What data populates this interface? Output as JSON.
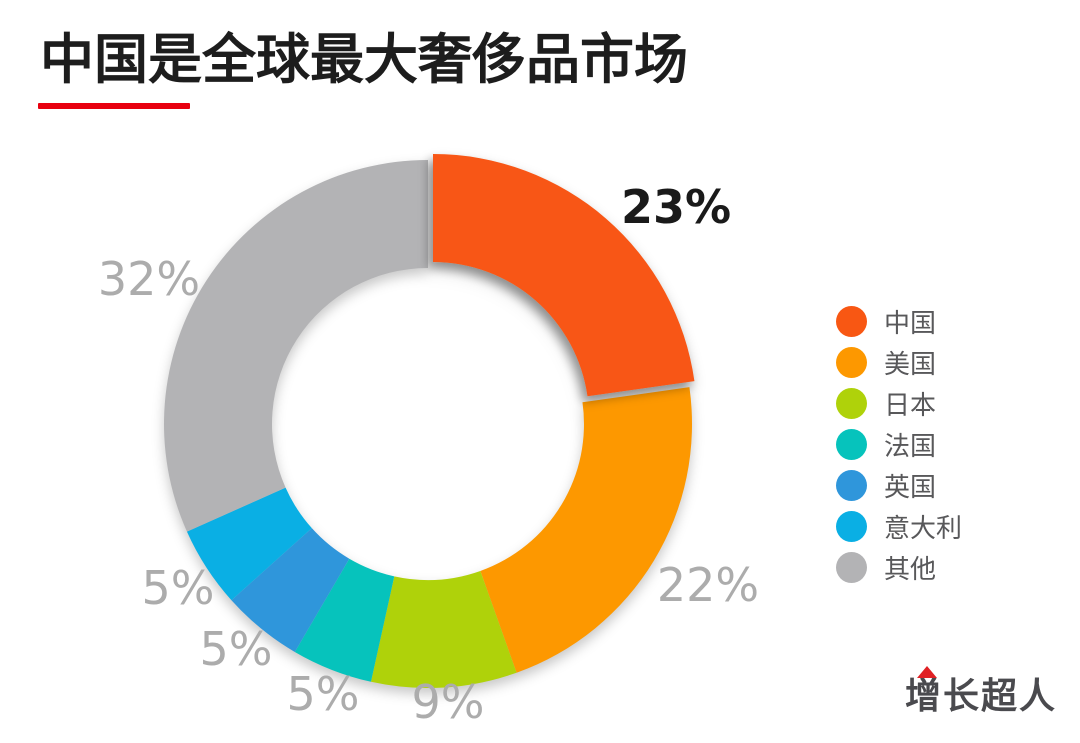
{
  "header": {
    "title": "中国是全球最大奢侈品市场",
    "underline_color": "#e8000f"
  },
  "chart_data": {
    "type": "pie",
    "subtype": "donut",
    "title": "中国是全球最大奢侈品市场",
    "categories": [
      "中国",
      "美国",
      "日本",
      "法国",
      "英国",
      "意大利",
      "其他"
    ],
    "values": [
      23,
      22,
      9,
      5,
      5,
      5,
      32
    ],
    "value_labels": [
      "23%",
      "22%",
      "9%",
      "5%",
      "5%",
      "5%",
      "32%"
    ],
    "colors": [
      "#f85713",
      "#fd9800",
      "#afd20a",
      "#06c3bc",
      "#2f96db",
      "#0aafe4",
      "#b3b3b5"
    ],
    "highlight_index": 0,
    "highlight_label_color": "#1a1a1a",
    "label_color": "#acacac",
    "legend_position": "right",
    "start_angle_deg": 0,
    "direction": "clockwise"
  },
  "legend": {
    "items": [
      {
        "label": "中国",
        "color": "#f85713"
      },
      {
        "label": "美国",
        "color": "#fd9800"
      },
      {
        "label": "日本",
        "color": "#afd20a"
      },
      {
        "label": "法国",
        "color": "#06c3bc"
      },
      {
        "label": "英国",
        "color": "#2f96db"
      },
      {
        "label": "意大利",
        "color": "#0aafe4"
      },
      {
        "label": "其他",
        "color": "#b3b3b5"
      }
    ]
  },
  "footer": {
    "logo_text": "增长超人",
    "logo_accent_color": "#e02125"
  }
}
